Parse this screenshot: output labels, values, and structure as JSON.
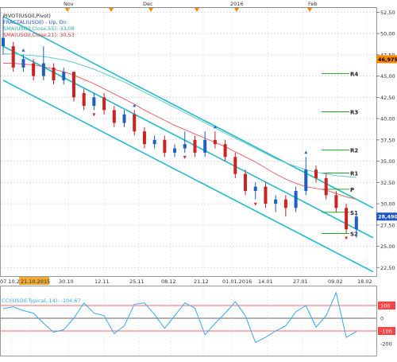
{
  "timeline": {
    "months": [
      "Nov",
      "Dec",
      "2016",
      "Feb"
    ],
    "dates": [
      "07.10.20",
      "21.10.2015",
      "30.10",
      "12.11",
      "25.11",
      "08.12",
      "21.12",
      "01.01.2016",
      "14.01",
      "27.01",
      "09.02",
      "18.02"
    ],
    "highlighted_date": "21.10.2015"
  },
  "indicators": {
    "pivot": "PIVOT(USOil,Pivot)",
    "fractal": "FRACTAL(USOil) - Up, Dn",
    "sma55": "SMA(USOil,Close,55): 33,08",
    "sma21": "SMA(USOil,Close,21): 30,53",
    "cci": "CCI(USOil,Typical, 14): -104,67"
  },
  "price_axis": {
    "ticks": [
      "52,50",
      "50,00",
      "47,50",
      "45,00",
      "42,50",
      "40,00",
      "37,50",
      "35,00",
      "32,50",
      "30,00",
      "27,50",
      "25,00",
      "22,50"
    ],
    "current_top": "46,975",
    "current": "28,490"
  },
  "pivot_levels": {
    "R4": "R4",
    "R3": "R3",
    "R2": "R2",
    "R1": "R1",
    "P": "P",
    "S1": "S1",
    "S2": "S2"
  },
  "cci_axis": {
    "upper": "100",
    "zero": "0",
    "lower": "-100",
    "bottom": "-200"
  },
  "colors": {
    "up_candle": "#1f5fbf",
    "down_candle": "#cc2222",
    "channel": "#22bbcc",
    "sma55": "#66cccc",
    "sma21": "#ee6666",
    "pivot_line": "#22aa22",
    "cci_line": "#33aaee",
    "price_marker": "#ff8800",
    "current_marker": "#2255cc"
  },
  "chart_data": {
    "type": "candlestick",
    "title": "USOil",
    "ylim": [
      21.5,
      53.0
    ],
    "x": [
      0,
      3,
      6,
      9,
      12,
      15,
      18,
      21,
      24,
      27,
      30,
      33,
      36,
      39,
      42,
      45,
      48,
      51,
      54,
      57,
      60,
      63,
      66,
      69,
      72,
      75,
      78,
      81,
      84,
      87,
      90,
      93,
      96,
      99,
      102,
      105
    ],
    "open": [
      48.5,
      48.5,
      46.0,
      46.5,
      45.0,
      46.0,
      44.5,
      45.5,
      43.0,
      41.5,
      42.5,
      41.0,
      39.5,
      40.5,
      38.5,
      37.0,
      37.5,
      36.0,
      36.5,
      37.5,
      36.0,
      37.5,
      37.0,
      35.5,
      33.5,
      31.5,
      32.0,
      30.0,
      30.5,
      29.5,
      31.5,
      34.0,
      33.0,
      31.0,
      29.5,
      27.0
    ],
    "close": [
      49.5,
      46.0,
      47.0,
      45.0,
      46.5,
      44.5,
      45.5,
      42.5,
      41.5,
      42.5,
      41.0,
      39.5,
      40.5,
      38.5,
      37.0,
      37.5,
      36.0,
      36.5,
      37.0,
      36.0,
      37.5,
      37.0,
      35.5,
      33.5,
      31.5,
      32.0,
      30.0,
      30.5,
      29.5,
      31.5,
      34.0,
      33.0,
      31.0,
      29.5,
      27.0,
      28.49
    ],
    "high": [
      52.0,
      49.0,
      47.5,
      47.0,
      48.5,
      46.5,
      46.0,
      45.5,
      43.5,
      43.0,
      43.0,
      41.5,
      41.0,
      41.0,
      39.0,
      38.0,
      38.0,
      37.0,
      38.5,
      38.0,
      38.5,
      38.5,
      37.5,
      36.0,
      34.0,
      32.5,
      32.5,
      31.0,
      31.0,
      32.0,
      35.5,
      34.5,
      33.5,
      31.5,
      30.0,
      29.0
    ],
    "low": [
      47.5,
      45.5,
      45.5,
      44.5,
      44.5,
      44.0,
      44.0,
      42.0,
      41.0,
      41.0,
      40.5,
      39.0,
      39.0,
      38.0,
      36.5,
      36.5,
      35.5,
      35.5,
      36.0,
      35.5,
      35.5,
      36.5,
      35.0,
      33.0,
      31.0,
      30.5,
      29.5,
      29.0,
      28.5,
      29.0,
      31.0,
      32.5,
      30.5,
      29.0,
      26.5,
      26.0
    ],
    "sma21": [
      46.5,
      46.5,
      46.4,
      46.3,
      46.1,
      45.8,
      45.5,
      45.1,
      44.6,
      44.1,
      43.5,
      42.9,
      42.3,
      41.7,
      41.0,
      40.4,
      39.8,
      39.2,
      38.7,
      38.2,
      37.7,
      37.2,
      36.7,
      36.1,
      35.5,
      34.9,
      34.2,
      33.5,
      32.9,
      32.4,
      32.0,
      31.8,
      31.6,
      31.2,
      30.8,
      30.53
    ],
    "sma55": [
      47.6,
      47.6,
      47.5,
      47.4,
      47.3,
      47.1,
      46.9,
      46.6,
      46.2,
      45.8,
      45.3,
      44.8,
      44.3,
      43.7,
      43.1,
      42.5,
      41.9,
      41.3,
      40.7,
      40.1,
      39.5,
      38.9,
      38.3,
      37.7,
      37.1,
      36.5,
      35.9,
      35.3,
      34.8,
      34.4,
      34.0,
      33.7,
      33.5,
      33.3,
      33.2,
      33.08
    ],
    "pivots": [
      {
        "label": "R4",
        "value": 45.3
      },
      {
        "label": "R3",
        "value": 40.8
      },
      {
        "label": "R2",
        "value": 36.3
      },
      {
        "label": "R1",
        "value": 33.6
      },
      {
        "label": "P",
        "value": 31.7
      },
      {
        "label": "S1",
        "value": 29.0
      },
      {
        "label": "S2",
        "value": 26.5
      }
    ],
    "channel": {
      "upper": [
        [
          0,
          52.0
        ],
        [
          110,
          29.5
        ]
      ],
      "middle": [
        [
          0,
          48.5
        ],
        [
          110,
          26.0
        ]
      ],
      "lower": [
        [
          0,
          44.5
        ],
        [
          110,
          22.0
        ]
      ]
    },
    "cci": [
      75,
      90,
      60,
      40,
      -40,
      -110,
      -90,
      0,
      120,
      40,
      20,
      -120,
      -60,
      110,
      120,
      30,
      -80,
      20,
      120,
      80,
      -130,
      -40,
      40,
      130,
      20,
      -190,
      -150,
      -100,
      -60,
      50,
      100,
      -70,
      20,
      200,
      -150,
      -105
    ]
  }
}
